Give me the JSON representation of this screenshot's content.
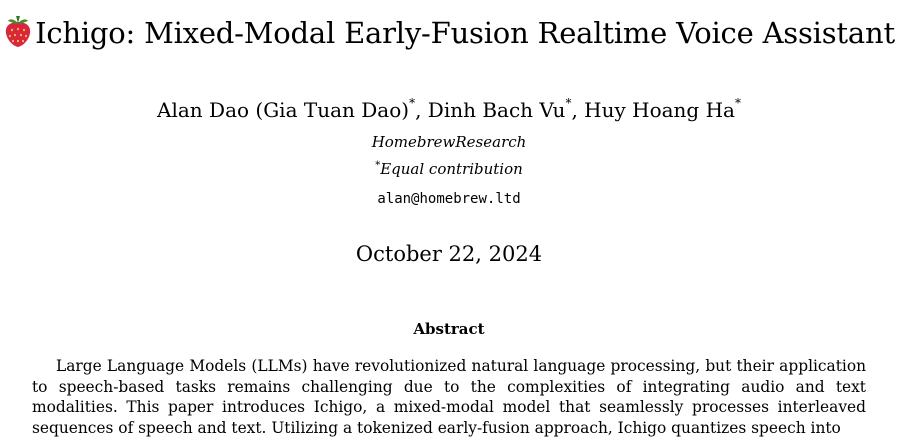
{
  "paper": {
    "title": "Ichigo: Mixed-Modal Early-Fusion Realtime Voice Assistant",
    "title_icon": "strawberry-icon",
    "authors": [
      {
        "name": "Alan Dao (Gia Tuan Dao)",
        "mark": "*"
      },
      {
        "name": "Dinh Bach Vu",
        "mark": "*"
      },
      {
        "name": "Huy Hoang Ha",
        "mark": "*"
      }
    ],
    "author_separator": ", ",
    "affiliation": "HomebrewResearch",
    "equal_contribution_mark": "*",
    "equal_contribution": "Equal contribution",
    "email": "alan@homebrew.ltd",
    "date": "October 22, 2024",
    "abstract_heading": "Abstract",
    "abstract_text": "Large Language Models (LLMs) have revolutionized natural language processing, but their application to speech-based tasks remains challenging due to the complexities of integrating audio and text modalities. This paper introduces Ichigo, a mixed-modal model that seamlessly processes interleaved sequences of speech and text. Utilizing a tokenized early-fusion approach, Ichigo quantizes speech into"
  }
}
